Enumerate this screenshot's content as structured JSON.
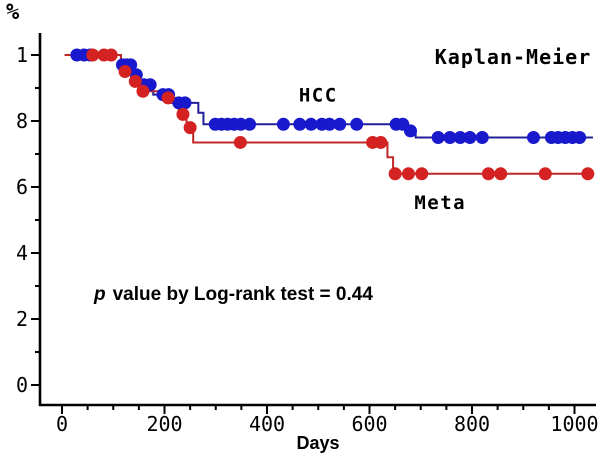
{
  "chart_data": {
    "type": "line",
    "chart_style": "kaplan-meier-step",
    "title": "Kaplan-Meier",
    "ylabel": "%",
    "xlabel": "Days",
    "grid": false,
    "legend_position": "inline-labels",
    "annotation": {
      "italic": "p",
      "text": "value by Log-rank test = 0.44"
    },
    "p_value": "0.44",
    "test_name": "Log-rank",
    "x_axis": {
      "ticks": [
        0,
        200,
        400,
        600,
        800,
        1000
      ],
      "tick_labels": [
        "0",
        "200",
        "400",
        "600",
        "800",
        "1000"
      ],
      "minor_step": 50,
      "range": [
        0,
        1040
      ]
    },
    "y_axis": {
      "ticks": [
        {
          "v": 1.0,
          "label": "1"
        },
        {
          "v": 0.8,
          "label": ". 8"
        },
        {
          "v": 0.6,
          "label": ". 6"
        },
        {
          "v": 0.4,
          "label": ". 4"
        },
        {
          "v": 0.2,
          "label": ". 2"
        },
        {
          "v": 0.0,
          "label": "0"
        }
      ],
      "minor_ticks": [
        0.9,
        0.7,
        0.5,
        0.3,
        0.1
      ],
      "range": [
        0,
        1.06
      ]
    },
    "series": [
      {
        "name": "HCC",
        "dot_color": "#1818cc",
        "line_color": "#202099",
        "start_day": 10,
        "end_day": 1036,
        "steps": [
          [
            10,
            1.0
          ],
          [
            115,
            0.97
          ],
          [
            140,
            0.94
          ],
          [
            153,
            0.91
          ],
          [
            178,
            0.88
          ],
          [
            213,
            0.855
          ],
          [
            266,
            0.825
          ],
          [
            276,
            0.79
          ],
          [
            672,
            0.77
          ],
          [
            690,
            0.75
          ]
        ],
        "censor_marks": [
          [
            29,
            1.0
          ],
          [
            43,
            1.0
          ],
          [
            55,
            1.0
          ],
          [
            118,
            0.97
          ],
          [
            126,
            0.97
          ],
          [
            134,
            0.97
          ],
          [
            145,
            0.94
          ],
          [
            160,
            0.91
          ],
          [
            172,
            0.91
          ],
          [
            197,
            0.88
          ],
          [
            208,
            0.88
          ],
          [
            228,
            0.855
          ],
          [
            240,
            0.855
          ],
          [
            299,
            0.79
          ],
          [
            311,
            0.79
          ],
          [
            323,
            0.79
          ],
          [
            336,
            0.79
          ],
          [
            349,
            0.79
          ],
          [
            366,
            0.79
          ],
          [
            432,
            0.79
          ],
          [
            464,
            0.79
          ],
          [
            486,
            0.79
          ],
          [
            507,
            0.79
          ],
          [
            522,
            0.79
          ],
          [
            542,
            0.79
          ],
          [
            575,
            0.79
          ],
          [
            652,
            0.79
          ],
          [
            665,
            0.79
          ],
          [
            680,
            0.77
          ],
          [
            734,
            0.75
          ],
          [
            757,
            0.75
          ],
          [
            777,
            0.75
          ],
          [
            796,
            0.75
          ],
          [
            820,
            0.75
          ],
          [
            920,
            0.75
          ],
          [
            955,
            0.75
          ],
          [
            968,
            0.75
          ],
          [
            982,
            0.75
          ],
          [
            996,
            0.75
          ],
          [
            1010,
            0.75
          ]
        ],
        "label_anchor": {
          "day": 500,
          "value": 0.88
        }
      },
      {
        "name": "Meta",
        "dot_color": "#d42222",
        "line_color": "#c02828",
        "start_day": 5,
        "end_day": 1028,
        "steps": [
          [
            5,
            1.0
          ],
          [
            115,
            0.95
          ],
          [
            138,
            0.92
          ],
          [
            150,
            0.89
          ],
          [
            195,
            0.87
          ],
          [
            228,
            0.82
          ],
          [
            243,
            0.78
          ],
          [
            256,
            0.735
          ],
          [
            635,
            0.69
          ],
          [
            646,
            0.64
          ]
        ],
        "censor_marks": [
          [
            60,
            1.0
          ],
          [
            82,
            1.0
          ],
          [
            96,
            1.0
          ],
          [
            123,
            0.95
          ],
          [
            143,
            0.92
          ],
          [
            158,
            0.89
          ],
          [
            207,
            0.87
          ],
          [
            236,
            0.82
          ],
          [
            250,
            0.78
          ],
          [
            348,
            0.735
          ],
          [
            606,
            0.735
          ],
          [
            622,
            0.735
          ],
          [
            650,
            0.64
          ],
          [
            676,
            0.64
          ],
          [
            702,
            0.64
          ],
          [
            832,
            0.64
          ],
          [
            856,
            0.64
          ],
          [
            943,
            0.64
          ],
          [
            1026,
            0.64
          ]
        ],
        "label_anchor": {
          "day": 738,
          "value": 0.555
        }
      }
    ]
  }
}
